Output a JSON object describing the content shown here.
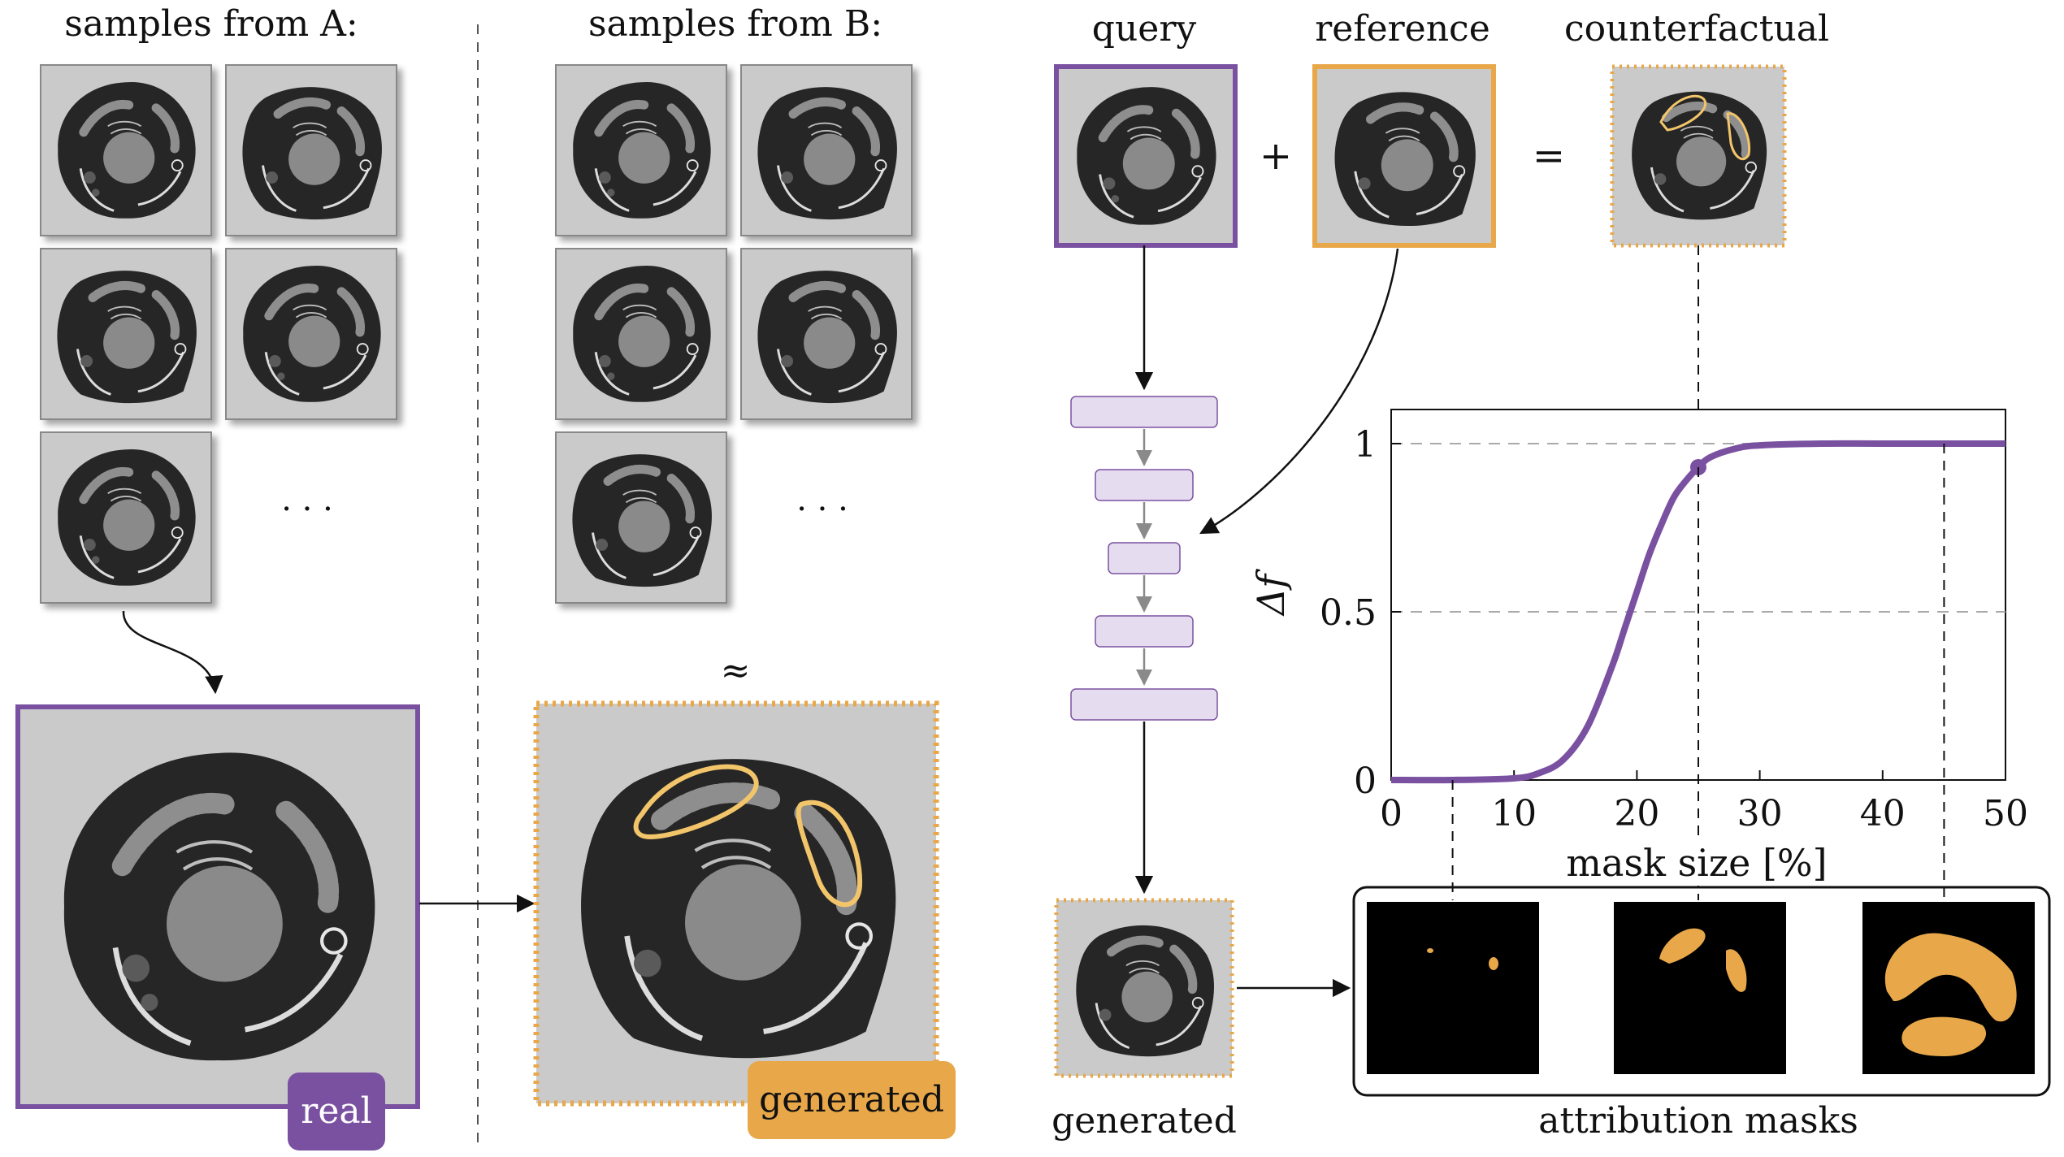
{
  "left_panel": {
    "title_a": "samples from A:",
    "title_b": "samples from B:",
    "ellipsis_a": "· · ·",
    "ellipsis_b": "· · ·",
    "approx_symbol": "≈",
    "badge_real": "real",
    "badge_generated": "generated"
  },
  "pipeline": {
    "query_label": "query",
    "reference_label": "reference",
    "counterfactual_label": "counterfactual",
    "plus": "+",
    "equals": "=",
    "generated_label": "generated",
    "masks_label": "attribution masks"
  },
  "colors": {
    "purple": "#7a51a1",
    "orange": "#e8a84a",
    "layer_fill": "#e6dcef",
    "image_bg": "#cacaca",
    "cell": "#262626",
    "nucleus": "#8a8a8a"
  },
  "chart_data": {
    "type": "line",
    "xlabel": "mask size [%]",
    "ylabel": "Δf",
    "xlim": [
      0,
      50
    ],
    "ylim": [
      0,
      1.1
    ],
    "xticks": [
      "0",
      "10",
      "20",
      "30",
      "40",
      "50"
    ],
    "yticks": [
      "0",
      "0.5",
      "1"
    ],
    "grid": "y dashed",
    "series": [
      {
        "x": [
          0,
          5,
          10,
          12,
          14,
          16,
          18,
          19,
          20,
          21,
          22,
          23,
          24,
          25,
          26,
          28,
          30,
          35,
          40,
          50
        ],
        "values": [
          0,
          0,
          0.005,
          0.02,
          0.06,
          0.16,
          0.34,
          0.45,
          0.56,
          0.67,
          0.76,
          0.84,
          0.89,
          0.93,
          0.96,
          0.985,
          0.995,
          1.0,
          1.0,
          1.0
        ]
      }
    ],
    "highlight_point": {
      "x": 25,
      "y": 0.93
    },
    "dashed_verticals": [
      5,
      25,
      45
    ]
  }
}
